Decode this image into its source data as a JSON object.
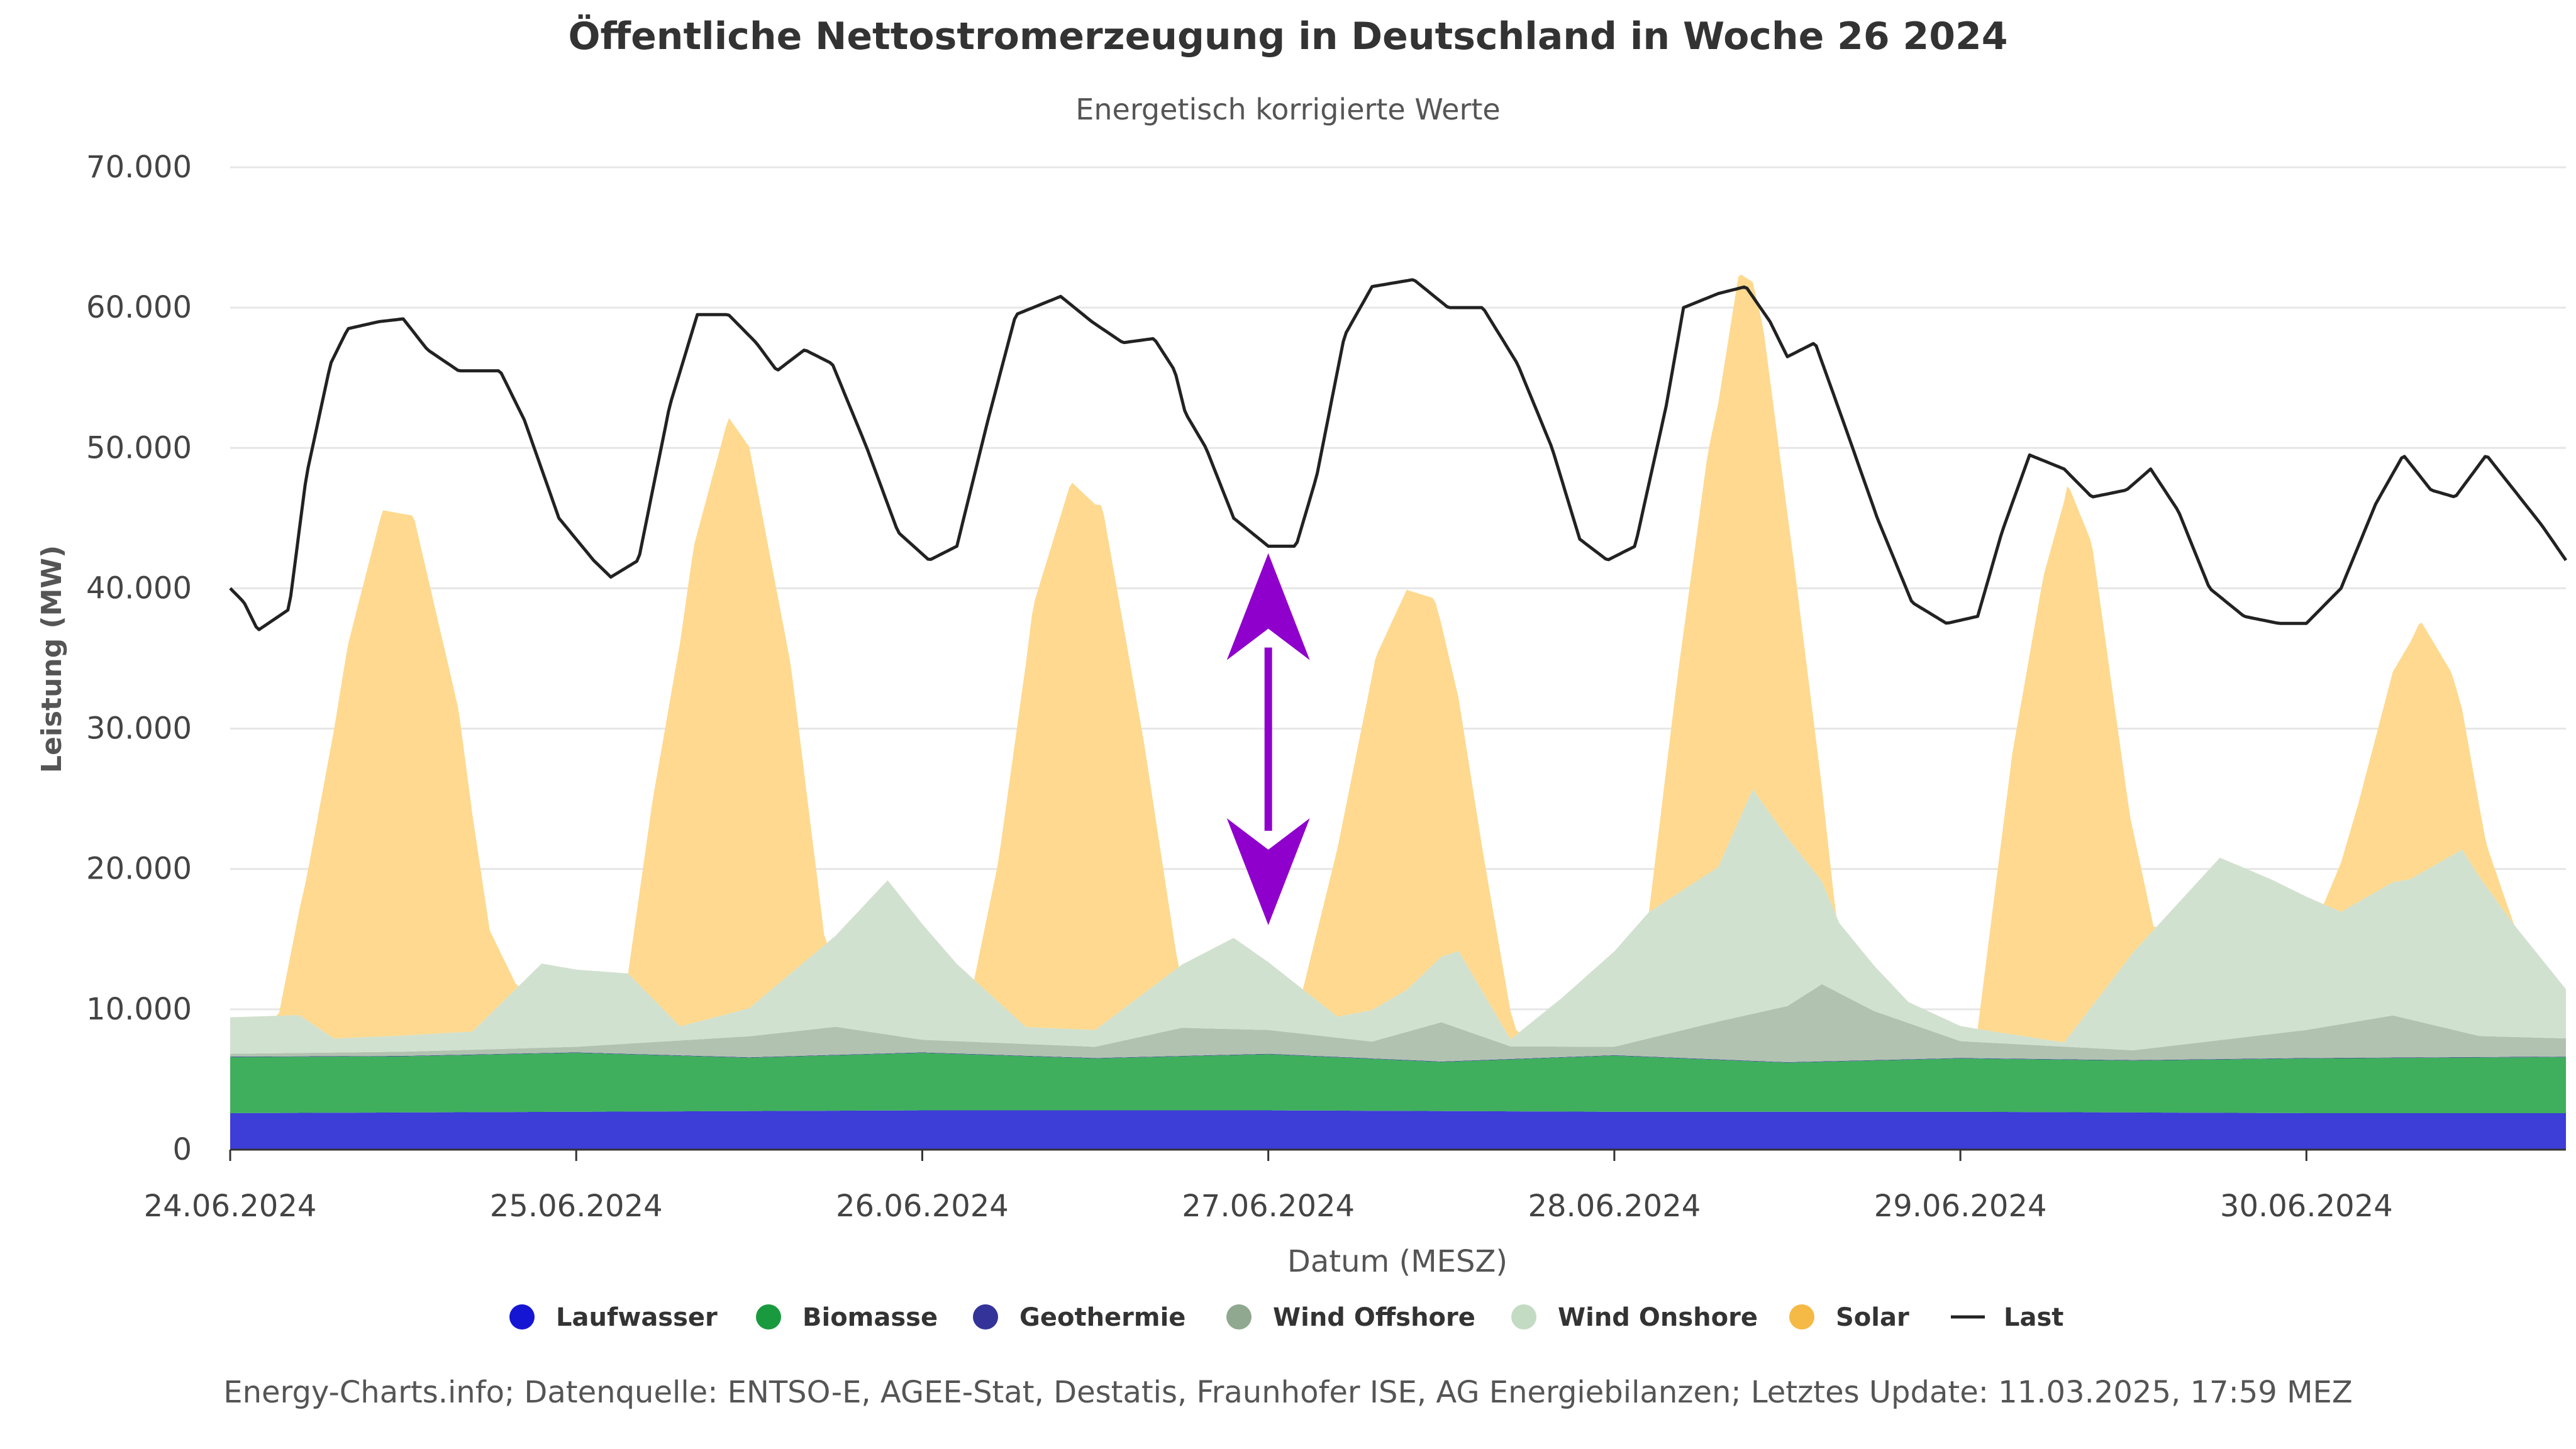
{
  "chart_data": {
    "type": "area",
    "title": "Öffentliche Nettostromerzeugung in Deutschland in Woche 26 2024",
    "subtitle": "Energetisch korrigierte Werte",
    "xlabel": "Datum (MESZ)",
    "ylabel": "Leistung (MW)",
    "ylim": [
      0,
      70000
    ],
    "xlim_days": [
      0,
      6.75
    ],
    "y_ticks": [
      "0",
      "10.000",
      "20.000",
      "30.000",
      "40.000",
      "50.000",
      "60.000",
      "70.000"
    ],
    "x_ticks": [
      "24.06.2024",
      "25.06.2024",
      "26.06.2024",
      "27.06.2024",
      "28.06.2024",
      "29.06.2024",
      "30.06.2024"
    ],
    "grid": true,
    "legend_position": "bottom-center",
    "stacked": true,
    "series": [
      {
        "name": "Laufwasser",
        "color": "#1515d4",
        "fill": "#3d3dd8",
        "type": "area",
        "points": [
          [
            0,
            2600
          ],
          [
            1,
            2700
          ],
          [
            2,
            2800
          ],
          [
            3,
            2800
          ],
          [
            4,
            2700
          ],
          [
            5,
            2700
          ],
          [
            6,
            2600
          ],
          [
            6.75,
            2600
          ]
        ]
      },
      {
        "name": "Biomasse",
        "color": "#1a9a3e",
        "fill": "#3faf5e",
        "type": "area",
        "points": [
          [
            0,
            4000
          ],
          [
            0.5,
            4000
          ],
          [
            1,
            4200
          ],
          [
            1.5,
            3800
          ],
          [
            2,
            4100
          ],
          [
            2.5,
            3700
          ],
          [
            3,
            4000
          ],
          [
            3.5,
            3500
          ],
          [
            4,
            4000
          ],
          [
            4.5,
            3500
          ],
          [
            5,
            3800
          ],
          [
            5.5,
            3700
          ],
          [
            6,
            3900
          ],
          [
            6.75,
            4000
          ]
        ]
      },
      {
        "name": "Geothermie",
        "color": "#333399",
        "fill": "#333399",
        "type": "area",
        "points": [
          [
            0,
            30
          ],
          [
            6.75,
            30
          ]
        ]
      },
      {
        "name": "Wind Offshore",
        "color": "#8fa88f",
        "fill": "#b2c2b0",
        "type": "area",
        "points": [
          [
            0,
            200
          ],
          [
            0.5,
            300
          ],
          [
            1,
            400
          ],
          [
            1.5,
            1500
          ],
          [
            1.75,
            2000
          ],
          [
            2,
            900
          ],
          [
            2.5,
            800
          ],
          [
            2.75,
            2000
          ],
          [
            3,
            1700
          ],
          [
            3.3,
            1200
          ],
          [
            3.5,
            2800
          ],
          [
            3.7,
            900
          ],
          [
            4,
            600
          ],
          [
            4.3,
            2700
          ],
          [
            4.5,
            4000
          ],
          [
            4.6,
            5500
          ],
          [
            4.75,
            3500
          ],
          [
            5,
            1200
          ],
          [
            5.5,
            700
          ],
          [
            6,
            2000
          ],
          [
            6.25,
            3000
          ],
          [
            6.5,
            1500
          ],
          [
            6.75,
            1300
          ]
        ]
      },
      {
        "name": "Wind Onshore",
        "color": "#c3dbc3",
        "fill": "#d1e1cf",
        "type": "area",
        "points": [
          [
            0,
            2600
          ],
          [
            0.2,
            2700
          ],
          [
            0.3,
            1000
          ],
          [
            0.7,
            1300
          ],
          [
            0.9,
            6000
          ],
          [
            1,
            5500
          ],
          [
            1.15,
            5000
          ],
          [
            1.3,
            1000
          ],
          [
            1.5,
            2000
          ],
          [
            1.75,
            6500
          ],
          [
            1.9,
            11000
          ],
          [
            2.1,
            5500
          ],
          [
            2.3,
            1200
          ],
          [
            2.5,
            1200
          ],
          [
            2.75,
            4500
          ],
          [
            2.9,
            6500
          ],
          [
            3.05,
            4000
          ],
          [
            3.2,
            1500
          ],
          [
            3.4,
            3000
          ],
          [
            3.55,
            5500
          ],
          [
            3.7,
            500
          ],
          [
            3.85,
            3500
          ],
          [
            4.1,
            9000
          ],
          [
            4.3,
            11000
          ],
          [
            4.4,
            16000
          ],
          [
            4.5,
            12000
          ],
          [
            4.65,
            5000
          ],
          [
            4.85,
            1500
          ],
          [
            5.1,
            800
          ],
          [
            5.3,
            300
          ],
          [
            5.5,
            7000
          ],
          [
            5.75,
            13000
          ],
          [
            5.9,
            11000
          ],
          [
            6.1,
            8000
          ],
          [
            6.3,
            10000
          ],
          [
            6.45,
            13000
          ],
          [
            6.6,
            8000
          ],
          [
            6.75,
            3500
          ]
        ]
      },
      {
        "name": "Solar",
        "color": "#f5b945",
        "fill": "#fed98f",
        "type": "area",
        "points": [
          [
            0,
            0
          ],
          [
            0.14,
            0
          ],
          [
            0.22,
            10000
          ],
          [
            0.34,
            28000
          ],
          [
            0.44,
            37500
          ],
          [
            0.53,
            37000
          ],
          [
            0.66,
            23000
          ],
          [
            0.75,
            6000
          ],
          [
            0.83,
            0
          ],
          [
            1.15,
            0
          ],
          [
            1.22,
            14000
          ],
          [
            1.34,
            34000
          ],
          [
            1.44,
            42500
          ],
          [
            1.5,
            40000
          ],
          [
            1.62,
            22000
          ],
          [
            1.72,
            0
          ],
          [
            2.15,
            0
          ],
          [
            2.22,
            10000
          ],
          [
            2.32,
            30000
          ],
          [
            2.43,
            39000
          ],
          [
            2.52,
            37000
          ],
          [
            2.64,
            18000
          ],
          [
            2.74,
            0
          ],
          [
            3.1,
            0
          ],
          [
            3.2,
            12000
          ],
          [
            3.31,
            25000
          ],
          [
            3.4,
            28500
          ],
          [
            3.48,
            26000
          ],
          [
            3.62,
            10000
          ],
          [
            3.72,
            0
          ],
          [
            4.1,
            0
          ],
          [
            4.18,
            15000
          ],
          [
            4.27,
            30000
          ],
          [
            4.36,
            39000
          ],
          [
            4.43,
            34000
          ],
          [
            4.52,
            20000
          ],
          [
            4.64,
            0
          ],
          [
            5.05,
            0
          ],
          [
            5.15,
            20000
          ],
          [
            5.24,
            33000
          ],
          [
            5.31,
            39500
          ],
          [
            5.38,
            33000
          ],
          [
            5.49,
            10000
          ],
          [
            5.56,
            0
          ],
          [
            6.05,
            0
          ],
          [
            6.15,
            7000
          ],
          [
            6.25,
            15000
          ],
          [
            6.33,
            18000
          ],
          [
            6.42,
            13000
          ],
          [
            6.52,
            3000
          ],
          [
            6.6,
            0
          ],
          [
            6.75,
            0
          ]
        ]
      },
      {
        "name": "Last",
        "color": "#222222",
        "type": "line",
        "points": [
          [
            0,
            40000
          ],
          [
            0.04,
            39000
          ],
          [
            0.08,
            37000
          ],
          [
            0.17,
            38500
          ],
          [
            0.22,
            48000
          ],
          [
            0.29,
            56000
          ],
          [
            0.34,
            58500
          ],
          [
            0.43,
            59000
          ],
          [
            0.5,
            59200
          ],
          [
            0.57,
            57000
          ],
          [
            0.66,
            55500
          ],
          [
            0.78,
            55500
          ],
          [
            0.85,
            52000
          ],
          [
            0.95,
            45000
          ],
          [
            1.05,
            42000
          ],
          [
            1.1,
            40800
          ],
          [
            1.18,
            42000
          ],
          [
            1.27,
            53000
          ],
          [
            1.35,
            59500
          ],
          [
            1.44,
            59500
          ],
          [
            1.52,
            57500
          ],
          [
            1.58,
            55500
          ],
          [
            1.66,
            57000
          ],
          [
            1.74,
            56000
          ],
          [
            1.84,
            50000
          ],
          [
            1.93,
            44000
          ],
          [
            2.02,
            42000
          ],
          [
            2.1,
            43000
          ],
          [
            2.19,
            52000
          ],
          [
            2.27,
            59500
          ],
          [
            2.4,
            60800
          ],
          [
            2.49,
            59000
          ],
          [
            2.58,
            57500
          ],
          [
            2.67,
            57800
          ],
          [
            2.73,
            55500
          ],
          [
            2.76,
            52500
          ],
          [
            2.82,
            50000
          ],
          [
            2.9,
            45000
          ],
          [
            3.0,
            43000
          ],
          [
            3.08,
            43000
          ],
          [
            3.14,
            48000
          ],
          [
            3.22,
            58000
          ],
          [
            3.3,
            61500
          ],
          [
            3.42,
            62000
          ],
          [
            3.52,
            60000
          ],
          [
            3.62,
            60000
          ],
          [
            3.72,
            56000
          ],
          [
            3.82,
            50000
          ],
          [
            3.9,
            43500
          ],
          [
            3.98,
            42000
          ],
          [
            4.06,
            43000
          ],
          [
            4.15,
            53000
          ],
          [
            4.2,
            60000
          ],
          [
            4.3,
            61000
          ],
          [
            4.38,
            61500
          ],
          [
            4.45,
            59000
          ],
          [
            4.5,
            56500
          ],
          [
            4.58,
            57500
          ],
          [
            4.66,
            52000
          ],
          [
            4.76,
            45000
          ],
          [
            4.86,
            39000
          ],
          [
            4.96,
            37500
          ],
          [
            5.05,
            38000
          ],
          [
            5.12,
            44000
          ],
          [
            5.2,
            49500
          ],
          [
            5.3,
            48500
          ],
          [
            5.38,
            46500
          ],
          [
            5.48,
            47000
          ],
          [
            5.55,
            48500
          ],
          [
            5.63,
            45500
          ],
          [
            5.72,
            40000
          ],
          [
            5.82,
            38000
          ],
          [
            5.92,
            37500
          ],
          [
            6.0,
            37500
          ],
          [
            6.1,
            40000
          ],
          [
            6.2,
            46000
          ],
          [
            6.28,
            49500
          ],
          [
            6.36,
            47000
          ],
          [
            6.43,
            46500
          ],
          [
            6.52,
            49500
          ],
          [
            6.6,
            47000
          ],
          [
            6.68,
            44500
          ],
          [
            6.75,
            42000
          ]
        ]
      }
    ]
  },
  "annotation": {
    "color": "#8f00cc",
    "from_mw": 42500,
    "to_mw": 16000,
    "at_day": 3.0
  },
  "credits": "Energy-Charts.info; Datenquelle: ENTSO-E, AGEE-Stat, Destatis, Fraunhofer ISE, AG Energiebilanzen; Letztes Update: 11.03.2025, 17:59 MEZ"
}
